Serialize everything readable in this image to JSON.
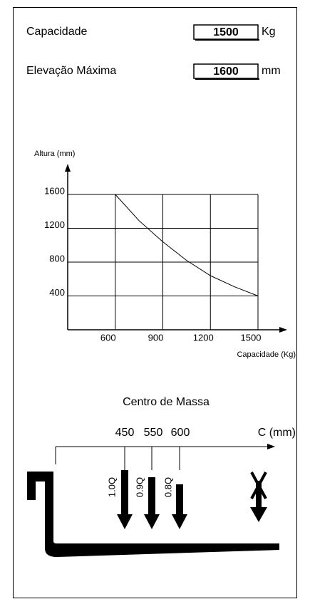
{
  "specs": [
    {
      "label": "Capacidade",
      "value": "1500",
      "unit": "Kg"
    },
    {
      "label": "Elevação Máxima",
      "value": "1600",
      "unit": "mm"
    }
  ],
  "chart_data": {
    "type": "line",
    "ylabel": "Altura (mm)",
    "xlabel": "Capacidade (Kg)",
    "x": [
      600,
      750,
      900,
      1050,
      1200,
      1350,
      1500
    ],
    "series": [
      {
        "color": "#000000",
        "values": [
          1600,
          1290,
          1040,
          820,
          640,
          510,
          400
        ]
      }
    ],
    "xlim": [
      300,
      1500
    ],
    "xticks": [
      600,
      900,
      1200,
      1500
    ],
    "ylim": [
      0,
      1600
    ],
    "yticks": [
      400,
      800,
      1200,
      1600
    ],
    "grid": true
  },
  "center_of_mass": {
    "title": "Centro de Massa",
    "positions": [
      "450",
      "550",
      "600"
    ],
    "axis_label": "C (mm)",
    "loads": [
      "1.0Q",
      "0.9Q",
      "0.8Q"
    ]
  }
}
